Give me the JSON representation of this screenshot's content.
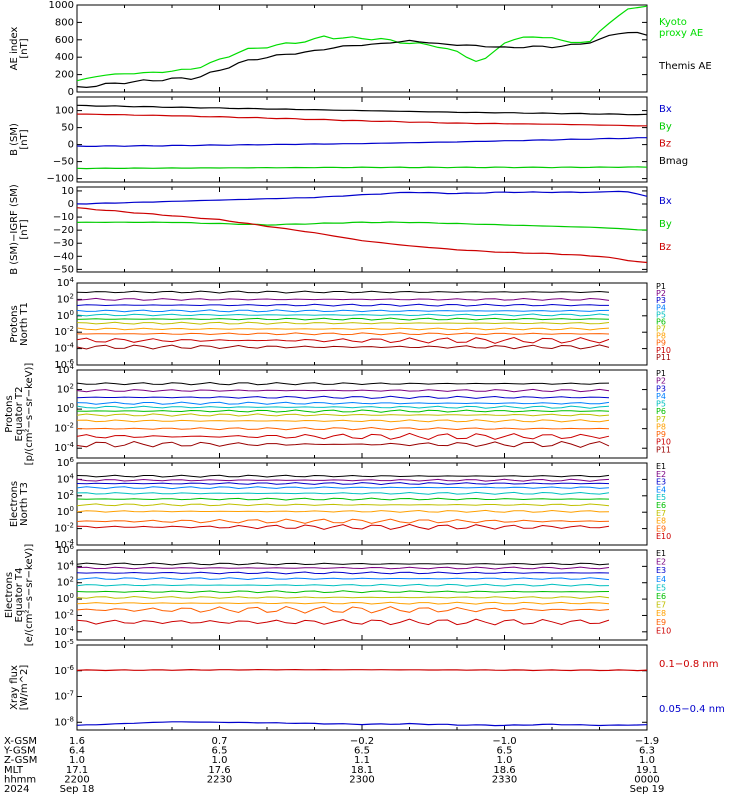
{
  "chart_data": [
    {
      "type": "line",
      "panel": "ae",
      "ylabel": [
        "AE index",
        "[nT]"
      ],
      "ylim": [
        0,
        1000
      ],
      "yticks": [
        "0",
        "200",
        "400",
        "600",
        "800",
        "1000"
      ],
      "series": [
        {
          "name": "Kyoto\nproxy AE",
          "color": "#00dd00",
          "x": [
            0,
            5,
            10,
            15,
            20,
            25,
            30,
            35,
            40,
            45,
            50,
            52,
            55,
            60,
            65,
            70,
            75,
            80,
            85,
            90,
            95,
            100,
            105,
            108,
            110,
            113,
            116,
            120
          ],
          "y": [
            130,
            190,
            210,
            220,
            240,
            270,
            370,
            480,
            520,
            560,
            600,
            640,
            620,
            620,
            600,
            560,
            540,
            460,
            330,
            570,
            640,
            620,
            560,
            580,
            700,
            830,
            960,
            980
          ]
        },
        {
          "name": "Themis AE",
          "color": "#000000",
          "x": [
            0,
            5,
            10,
            15,
            20,
            25,
            30,
            35,
            40,
            45,
            50,
            55,
            60,
            65,
            70,
            75,
            80,
            85,
            90,
            95,
            100,
            105,
            110,
            115,
            120
          ],
          "y": [
            50,
            80,
            110,
            130,
            150,
            160,
            250,
            350,
            400,
            440,
            470,
            520,
            540,
            560,
            590,
            560,
            540,
            530,
            510,
            520,
            520,
            540,
            600,
            700,
            650
          ]
        }
      ]
    },
    {
      "type": "line",
      "panel": "bsm",
      "ylabel": [
        "B (SM)",
        "[nT]"
      ],
      "ylim": [
        -110,
        140
      ],
      "yticks": [
        "−100",
        "−50",
        "0",
        "50",
        "100"
      ],
      "series": [
        {
          "name": "Bx",
          "color": "#0000cc",
          "x": [
            0,
            20,
            40,
            60,
            80,
            100,
            120
          ],
          "y": [
            -5,
            -3,
            0,
            3,
            8,
            14,
            20
          ]
        },
        {
          "name": "By",
          "color": "#00cc00",
          "x": [
            0,
            20,
            40,
            60,
            80,
            100,
            120
          ],
          "y": [
            -70,
            -69,
            -68,
            -67,
            -67,
            -67,
            -66
          ]
        },
        {
          "name": "Bz",
          "color": "#cc0000",
          "x": [
            0,
            20,
            40,
            60,
            80,
            100,
            120
          ],
          "y": [
            90,
            85,
            78,
            70,
            63,
            60,
            55
          ]
        },
        {
          "name": "Bmag",
          "color": "#000000",
          "x": [
            0,
            20,
            40,
            60,
            80,
            100,
            120
          ],
          "y": [
            115,
            110,
            105,
            100,
            95,
            92,
            88
          ]
        }
      ]
    },
    {
      "type": "line",
      "panel": "bigrf",
      "ylabel": [
        "B (SM)−IGRF (SM)",
        "[nT]"
      ],
      "ylim": [
        -52,
        13
      ],
      "yticks": [
        "−50",
        "−40",
        "−30",
        "−20",
        "−10",
        "0",
        "10"
      ],
      "series": [
        {
          "name": "Bx",
          "color": "#0000cc",
          "x": [
            0,
            10,
            20,
            30,
            40,
            50,
            60,
            70,
            80,
            90,
            100,
            110,
            115,
            120
          ],
          "y": [
            0,
            1,
            2,
            3,
            4,
            5,
            7,
            9,
            8,
            9,
            9,
            9,
            10,
            6
          ]
        },
        {
          "name": "By",
          "color": "#00cc00",
          "x": [
            0,
            10,
            20,
            30,
            40,
            50,
            60,
            70,
            80,
            90,
            100,
            110,
            120
          ],
          "y": [
            -14,
            -14,
            -14,
            -15,
            -16,
            -15,
            -14,
            -14,
            -15,
            -16,
            -17,
            -18,
            -20
          ]
        },
        {
          "name": "Bz",
          "color": "#cc0000",
          "x": [
            0,
            10,
            20,
            30,
            40,
            50,
            60,
            70,
            80,
            90,
            100,
            110,
            120
          ],
          "y": [
            -3,
            -6,
            -9,
            -12,
            -17,
            -22,
            -28,
            -32,
            -35,
            -37,
            -38,
            -40,
            -45
          ]
        }
      ]
    },
    {
      "type": "line",
      "panel": "protons_t1",
      "log": true,
      "ylabel": [
        "Protons",
        "North T1"
      ],
      "ylim": [
        -6,
        4
      ],
      "yticks": [
        "10^-6",
        "10^-4",
        "10^-2",
        "10^0",
        "10^2",
        "10^4"
      ],
      "channels": [
        "P1",
        "P2",
        "P3",
        "P4",
        "P5",
        "P6",
        "P7",
        "P8",
        "P9",
        "P10",
        "P11"
      ],
      "channel_colors": [
        "#000000",
        "#7a0080",
        "#0000cc",
        "#0080ff",
        "#00c0c0",
        "#00c000",
        "#c0c000",
        "#ffa000",
        "#ff6000",
        "#cc0000",
        "#990000"
      ],
      "levels": [
        2.9,
        2.0,
        1.3,
        0.6,
        0.1,
        -0.4,
        -0.9,
        -1.6,
        -2.2,
        -3.0,
        -3.8
      ]
    },
    {
      "type": "line",
      "panel": "protons_t2",
      "log": true,
      "ylabel": [
        "Protons",
        "Equator T2",
        "[p/(cm²−s−sr−keV)]"
      ],
      "ylim": [
        -5,
        4
      ],
      "yticks": [
        "10^-4",
        "10^-2",
        "10^0",
        "10^2",
        "10^4"
      ],
      "channels": [
        "P1",
        "P2",
        "P3",
        "P4",
        "P5",
        "P6",
        "P7",
        "P8",
        "P9",
        "P10",
        "P11"
      ],
      "channel_colors": [
        "#000000",
        "#7a0080",
        "#0000cc",
        "#0080ff",
        "#00c0c0",
        "#00c000",
        "#c0c000",
        "#ffa000",
        "#ff6000",
        "#cc0000",
        "#990000"
      ],
      "levels": [
        2.6,
        1.9,
        1.2,
        0.6,
        0.2,
        -0.2,
        -0.6,
        -1.2,
        -2.0,
        -2.8,
        -3.6
      ]
    },
    {
      "type": "line",
      "panel": "electrons_t3",
      "log": true,
      "ylabel": [
        "Electrons",
        "North T3"
      ],
      "ylim": [
        -4,
        6
      ],
      "yticks": [
        "10^-4",
        "10^-2",
        "10^0",
        "10^2",
        "10^4",
        "10^6"
      ],
      "channels": [
        "E1",
        "E2",
        "E3",
        "E4",
        "E5",
        "E6",
        "E7",
        "E8",
        "E9",
        "E10"
      ],
      "channel_colors": [
        "#000000",
        "#7a0080",
        "#0000cc",
        "#0080ff",
        "#00c0c0",
        "#00c000",
        "#c0c000",
        "#ffa000",
        "#ff6000",
        "#cc0000"
      ],
      "levels": [
        4.4,
        3.9,
        3.5,
        3.0,
        2.3,
        1.6,
        0.9,
        0.1,
        -1.1,
        -1.8
      ]
    },
    {
      "type": "line",
      "panel": "electrons_t4",
      "log": true,
      "ylabel": [
        "Electrons",
        "Equator T4",
        "[e/(cm²−s−sr−keV)]"
      ],
      "ylim": [
        -5,
        6
      ],
      "yticks": [
        "10^-4",
        "10^-2",
        "10^0",
        "10^2",
        "10^4",
        "10^6"
      ],
      "channels": [
        "E1",
        "E2",
        "E3",
        "E4",
        "E5",
        "E6",
        "E7",
        "E8",
        "E9",
        "E10"
      ],
      "channel_colors": [
        "#000000",
        "#7a0080",
        "#0000cc",
        "#0080ff",
        "#00c0c0",
        "#00c000",
        "#c0c000",
        "#ffa000",
        "#ff6000",
        "#cc0000"
      ],
      "levels": [
        4.3,
        3.8,
        3.2,
        2.5,
        1.7,
        0.9,
        0.2,
        -0.5,
        -1.3,
        -2.8
      ]
    },
    {
      "type": "line",
      "panel": "xray",
      "log": true,
      "ylabel": [
        "Xray flux",
        "[W/m^2]"
      ],
      "ylim": [
        -8.3,
        -5
      ],
      "yticks": [
        "10^-8",
        "10^-7",
        "10^-6",
        "10^-5"
      ],
      "series": [
        {
          "name": "0.1−0.8 nm",
          "color": "#cc0000",
          "x": [
            0,
            20,
            40,
            60,
            80,
            100,
            120
          ],
          "y": [
            -5.98,
            -5.97,
            -5.96,
            -5.96,
            -5.97,
            -5.98,
            -5.98
          ]
        },
        {
          "name": "0.05−0.4 nm",
          "color": "#0000cc",
          "x": [
            0,
            10,
            20,
            30,
            40,
            50,
            60,
            70,
            80,
            90,
            100,
            110,
            120
          ],
          "y": [
            -8.12,
            -8.05,
            -7.98,
            -8.0,
            -8.02,
            -8.05,
            -8.08,
            -8.06,
            -8.1,
            -8.12,
            -8.08,
            -8.12,
            -8.1
          ]
        }
      ]
    }
  ],
  "footer": {
    "row_labels": [
      "X-GSM",
      "Y-GSM",
      "Z-GSM",
      "MLT",
      "hhmm",
      "2024"
    ],
    "columns": [
      {
        "values": [
          "1.6",
          "6.4",
          "1.0",
          "17.1",
          "2200",
          "Sep 18"
        ]
      },
      {
        "values": [
          "0.7",
          "6.5",
          "1.0",
          "17.6",
          "2230",
          ""
        ]
      },
      {
        "values": [
          "−0.2",
          "6.5",
          "1.1",
          "18.1",
          "2300",
          ""
        ]
      },
      {
        "values": [
          "−1.0",
          "6.5",
          "1.0",
          "18.6",
          "2330",
          ""
        ]
      },
      {
        "values": [
          "−1.9",
          "6.3",
          "1.0",
          "19.1",
          "0000",
          "Sep 19"
        ]
      }
    ]
  }
}
